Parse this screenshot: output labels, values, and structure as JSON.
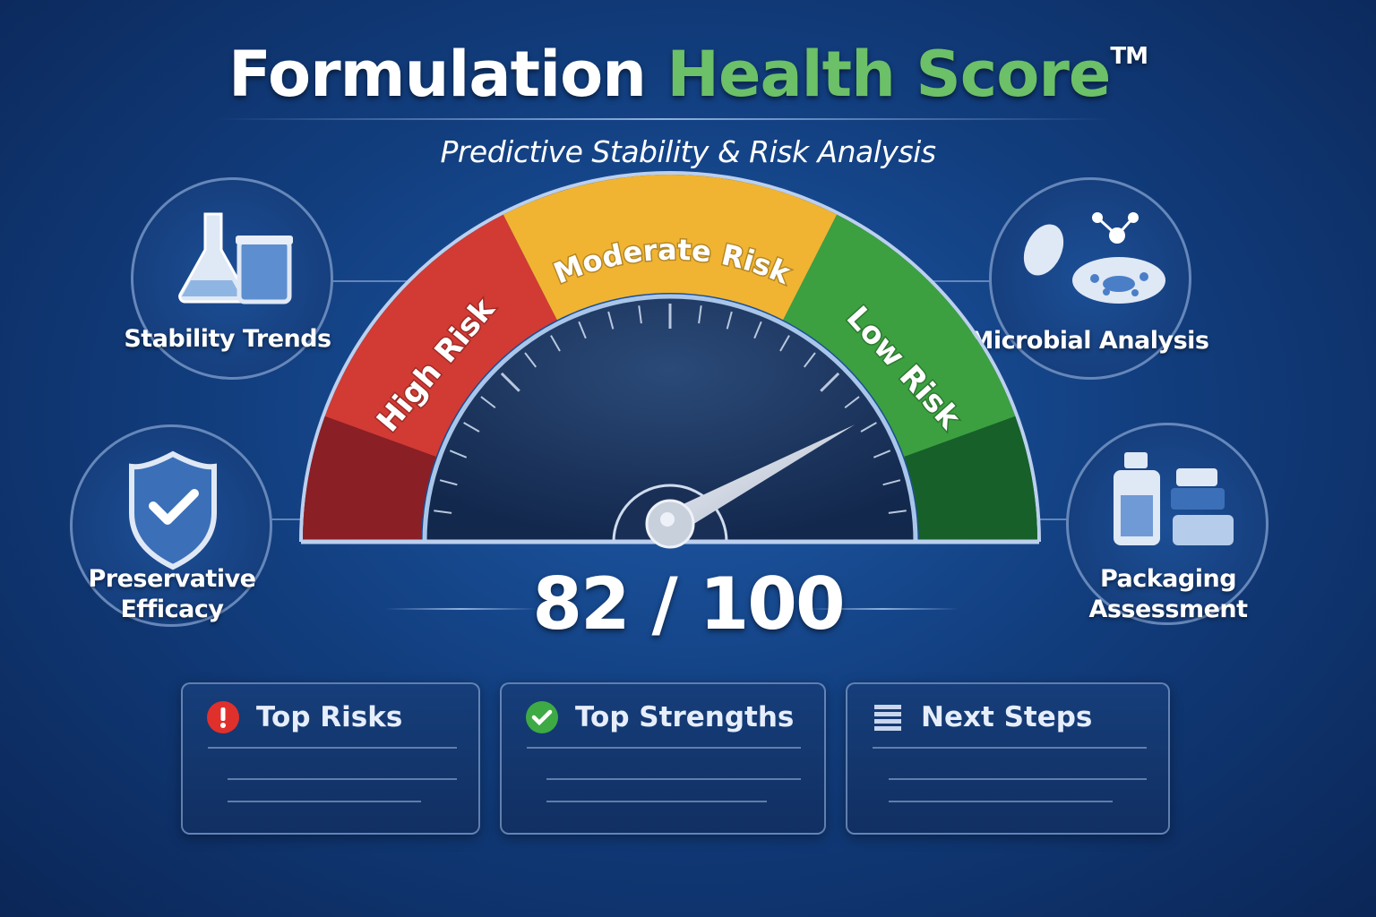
{
  "header": {
    "title_part1": "Formulation",
    "title_part2": "Health Score",
    "trademark": "TM",
    "subtitle": "Predictive Stability & Risk Analysis"
  },
  "features": [
    {
      "label": "Stability Trends",
      "icon": "lab-flask-icon"
    },
    {
      "label": "Microbial Analysis",
      "icon": "microbe-icon"
    },
    {
      "label_line1": "Preservative",
      "label_line2": "Efficacy",
      "icon": "shield-check-icon"
    },
    {
      "label_line1": "Packaging",
      "label_line2": "Assessment",
      "icon": "packaging-bottles-icon"
    }
  ],
  "gauge": {
    "min": 0,
    "max": 100,
    "value": 82,
    "zones": [
      {
        "label": "High Risk",
        "color": "#d23a34"
      },
      {
        "label": "Moderate Risk",
        "color": "#f0b432"
      },
      {
        "label": "Low Risk",
        "color": "#3ca040"
      }
    ]
  },
  "score": {
    "text": "82 / 100"
  },
  "cards": [
    {
      "title": "Top Risks",
      "icon": "alert-icon",
      "color": "#e0302c"
    },
    {
      "title": "Top Strengths",
      "icon": "check-circle-icon",
      "color": "#3eaa44"
    },
    {
      "title": "Next Steps",
      "icon": "list-icon",
      "color": "#c8d6ee"
    }
  ]
}
